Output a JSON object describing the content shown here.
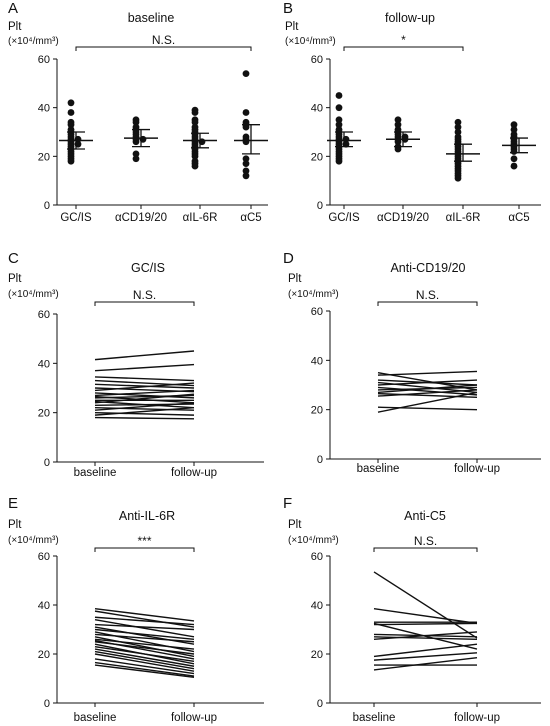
{
  "chart_data": [
    {
      "panel": "A",
      "type": "scatter",
      "title": "baseline",
      "ylabel": "Plt",
      "yunits": "(×10⁴/mm³)",
      "ylim": [
        0,
        60
      ],
      "yticks": [
        0,
        20,
        40,
        60
      ],
      "categories": [
        "GC/IS",
        "αCD19/20",
        "αIL-6R",
        "αC5"
      ],
      "significance": {
        "text": "N.S.",
        "from": 0,
        "to": 3
      },
      "groups": [
        {
          "values": [
            42,
            38,
            34,
            33,
            31,
            30,
            29,
            28,
            27,
            27,
            26,
            25,
            25,
            24,
            23,
            22,
            21,
            20,
            19,
            18
          ],
          "mean": 26.5,
          "ci": [
            23,
            30
          ]
        },
        {
          "values": [
            35,
            34,
            32,
            31,
            30,
            29,
            28,
            27,
            27,
            26,
            21,
            19
          ],
          "mean": 27.5,
          "ci": [
            24,
            31
          ]
        },
        {
          "values": [
            39,
            38,
            35,
            34,
            32,
            31,
            30,
            29,
            28,
            27,
            26,
            26,
            25,
            24,
            23,
            22,
            21,
            20,
            18,
            17,
            16
          ],
          "mean": 26.5,
          "ci": [
            23.5,
            29.5
          ]
        },
        {
          "values": [
            54,
            38,
            34,
            33,
            32,
            28,
            27,
            26,
            19,
            17,
            14,
            12
          ],
          "mean": 26.5,
          "ci": [
            21,
            33
          ]
        }
      ]
    },
    {
      "panel": "B",
      "type": "scatter",
      "title": "follow-up",
      "ylabel": "Plt",
      "yunits": "(×10⁴/mm³)",
      "ylim": [
        0,
        60
      ],
      "yticks": [
        0,
        20,
        40,
        60
      ],
      "categories": [
        "GC/IS",
        "αCD19/20",
        "αIL-6R",
        "αC5"
      ],
      "significance": {
        "text": "*",
        "from": 0,
        "to": 2
      },
      "groups": [
        {
          "values": [
            45,
            40,
            35,
            33,
            31,
            30,
            29,
            28,
            27,
            27,
            26,
            25,
            25,
            24,
            23,
            22,
            21,
            20,
            19,
            18
          ],
          "mean": 26.5,
          "ci": [
            24,
            30
          ]
        },
        {
          "values": [
            35,
            33,
            31,
            30,
            29,
            28,
            28,
            27,
            27,
            26,
            24,
            23
          ],
          "mean": 27,
          "ci": [
            24,
            30
          ]
        },
        {
          "values": [
            34,
            32,
            30,
            28,
            27,
            26,
            25,
            24,
            23,
            22,
            21,
            20,
            19,
            18,
            17,
            16,
            15,
            14,
            13,
            12,
            11
          ],
          "mean": 21,
          "ci": [
            18,
            25
          ]
        },
        {
          "values": [
            33,
            31,
            29,
            28,
            27,
            26,
            25,
            24,
            23,
            22,
            19,
            16
          ],
          "mean": 24.5,
          "ci": [
            21.5,
            27.5
          ]
        }
      ]
    },
    {
      "panel": "C",
      "type": "line",
      "title": "GC/IS",
      "ylabel": "Plt",
      "yunits": "(×10⁴/mm³)",
      "ylim": [
        0,
        60
      ],
      "yticks": [
        0,
        20,
        40,
        60
      ],
      "categories": [
        "baseline",
        "follow-up"
      ],
      "significance": {
        "text": "N.S."
      },
      "pairs": [
        [
          41.5,
          45
        ],
        [
          37,
          39.5
        ],
        [
          34.5,
          33
        ],
        [
          33,
          31
        ],
        [
          31.5,
          30
        ],
        [
          30,
          28.5
        ],
        [
          29,
          32
        ],
        [
          28,
          26
        ],
        [
          27,
          29
        ],
        [
          26.5,
          24
        ],
        [
          26,
          27
        ],
        [
          25,
          25
        ],
        [
          24.5,
          22
        ],
        [
          24,
          27.5
        ],
        [
          23,
          23.5
        ],
        [
          22,
          21
        ],
        [
          21,
          24
        ],
        [
          20,
          19
        ],
        [
          19,
          22
        ],
        [
          18,
          17.5
        ]
      ]
    },
    {
      "panel": "D",
      "type": "line",
      "title": "Anti-CD19/20",
      "ylabel": "Plt",
      "yunits": "(×10⁴/mm³)",
      "ylim": [
        0,
        60
      ],
      "yticks": [
        0,
        20,
        40,
        60
      ],
      "categories": [
        "baseline",
        "follow-up"
      ],
      "significance": {
        "text": "N.S."
      },
      "pairs": [
        [
          35,
          28
        ],
        [
          34,
          35.5
        ],
        [
          32,
          30
        ],
        [
          31,
          27
        ],
        [
          30,
          32
        ],
        [
          29,
          26
        ],
        [
          28,
          29
        ],
        [
          27,
          30
        ],
        [
          26.5,
          25
        ],
        [
          25.5,
          28
        ],
        [
          21,
          20
        ],
        [
          19,
          27
        ]
      ]
    },
    {
      "panel": "E",
      "type": "line",
      "title": "Anti-IL-6R",
      "ylabel": "Plt",
      "yunits": "(×10⁴/mm³)",
      "ylim": [
        0,
        60
      ],
      "yticks": [
        0,
        20,
        40,
        60
      ],
      "categories": [
        "baseline",
        "follow-up"
      ],
      "significance": {
        "text": "***"
      },
      "pairs": [
        [
          38.5,
          33.5
        ],
        [
          37.5,
          31
        ],
        [
          35,
          32
        ],
        [
          34,
          27
        ],
        [
          32,
          30
        ],
        [
          31,
          24
        ],
        [
          30,
          26
        ],
        [
          29,
          21
        ],
        [
          28,
          25
        ],
        [
          27,
          19
        ],
        [
          26,
          22
        ],
        [
          25.5,
          18
        ],
        [
          25,
          20
        ],
        [
          24,
          16
        ],
        [
          23,
          17
        ],
        [
          22,
          15
        ],
        [
          21,
          14
        ],
        [
          20,
          13
        ],
        [
          18,
          12
        ],
        [
          16.5,
          11
        ],
        [
          15.5,
          10.5
        ]
      ]
    },
    {
      "panel": "F",
      "type": "line",
      "title": "Anti-C5",
      "ylabel": "Plt",
      "yunits": "(×10⁴/mm³)",
      "ylim": [
        0,
        60
      ],
      "yticks": [
        0,
        20,
        40,
        60
      ],
      "categories": [
        "baseline",
        "follow-up"
      ],
      "significance": {
        "text": "N.S."
      },
      "pairs": [
        [
          53.5,
          26.5
        ],
        [
          38.5,
          32.5
        ],
        [
          33,
          33
        ],
        [
          32.5,
          22
        ],
        [
          32,
          32.5
        ],
        [
          28,
          27
        ],
        [
          27,
          26
        ],
        [
          26,
          29
        ],
        [
          19,
          24
        ],
        [
          17.5,
          20.5
        ],
        [
          15.5,
          15.5
        ],
        [
          13.5,
          18.5
        ]
      ]
    }
  ]
}
